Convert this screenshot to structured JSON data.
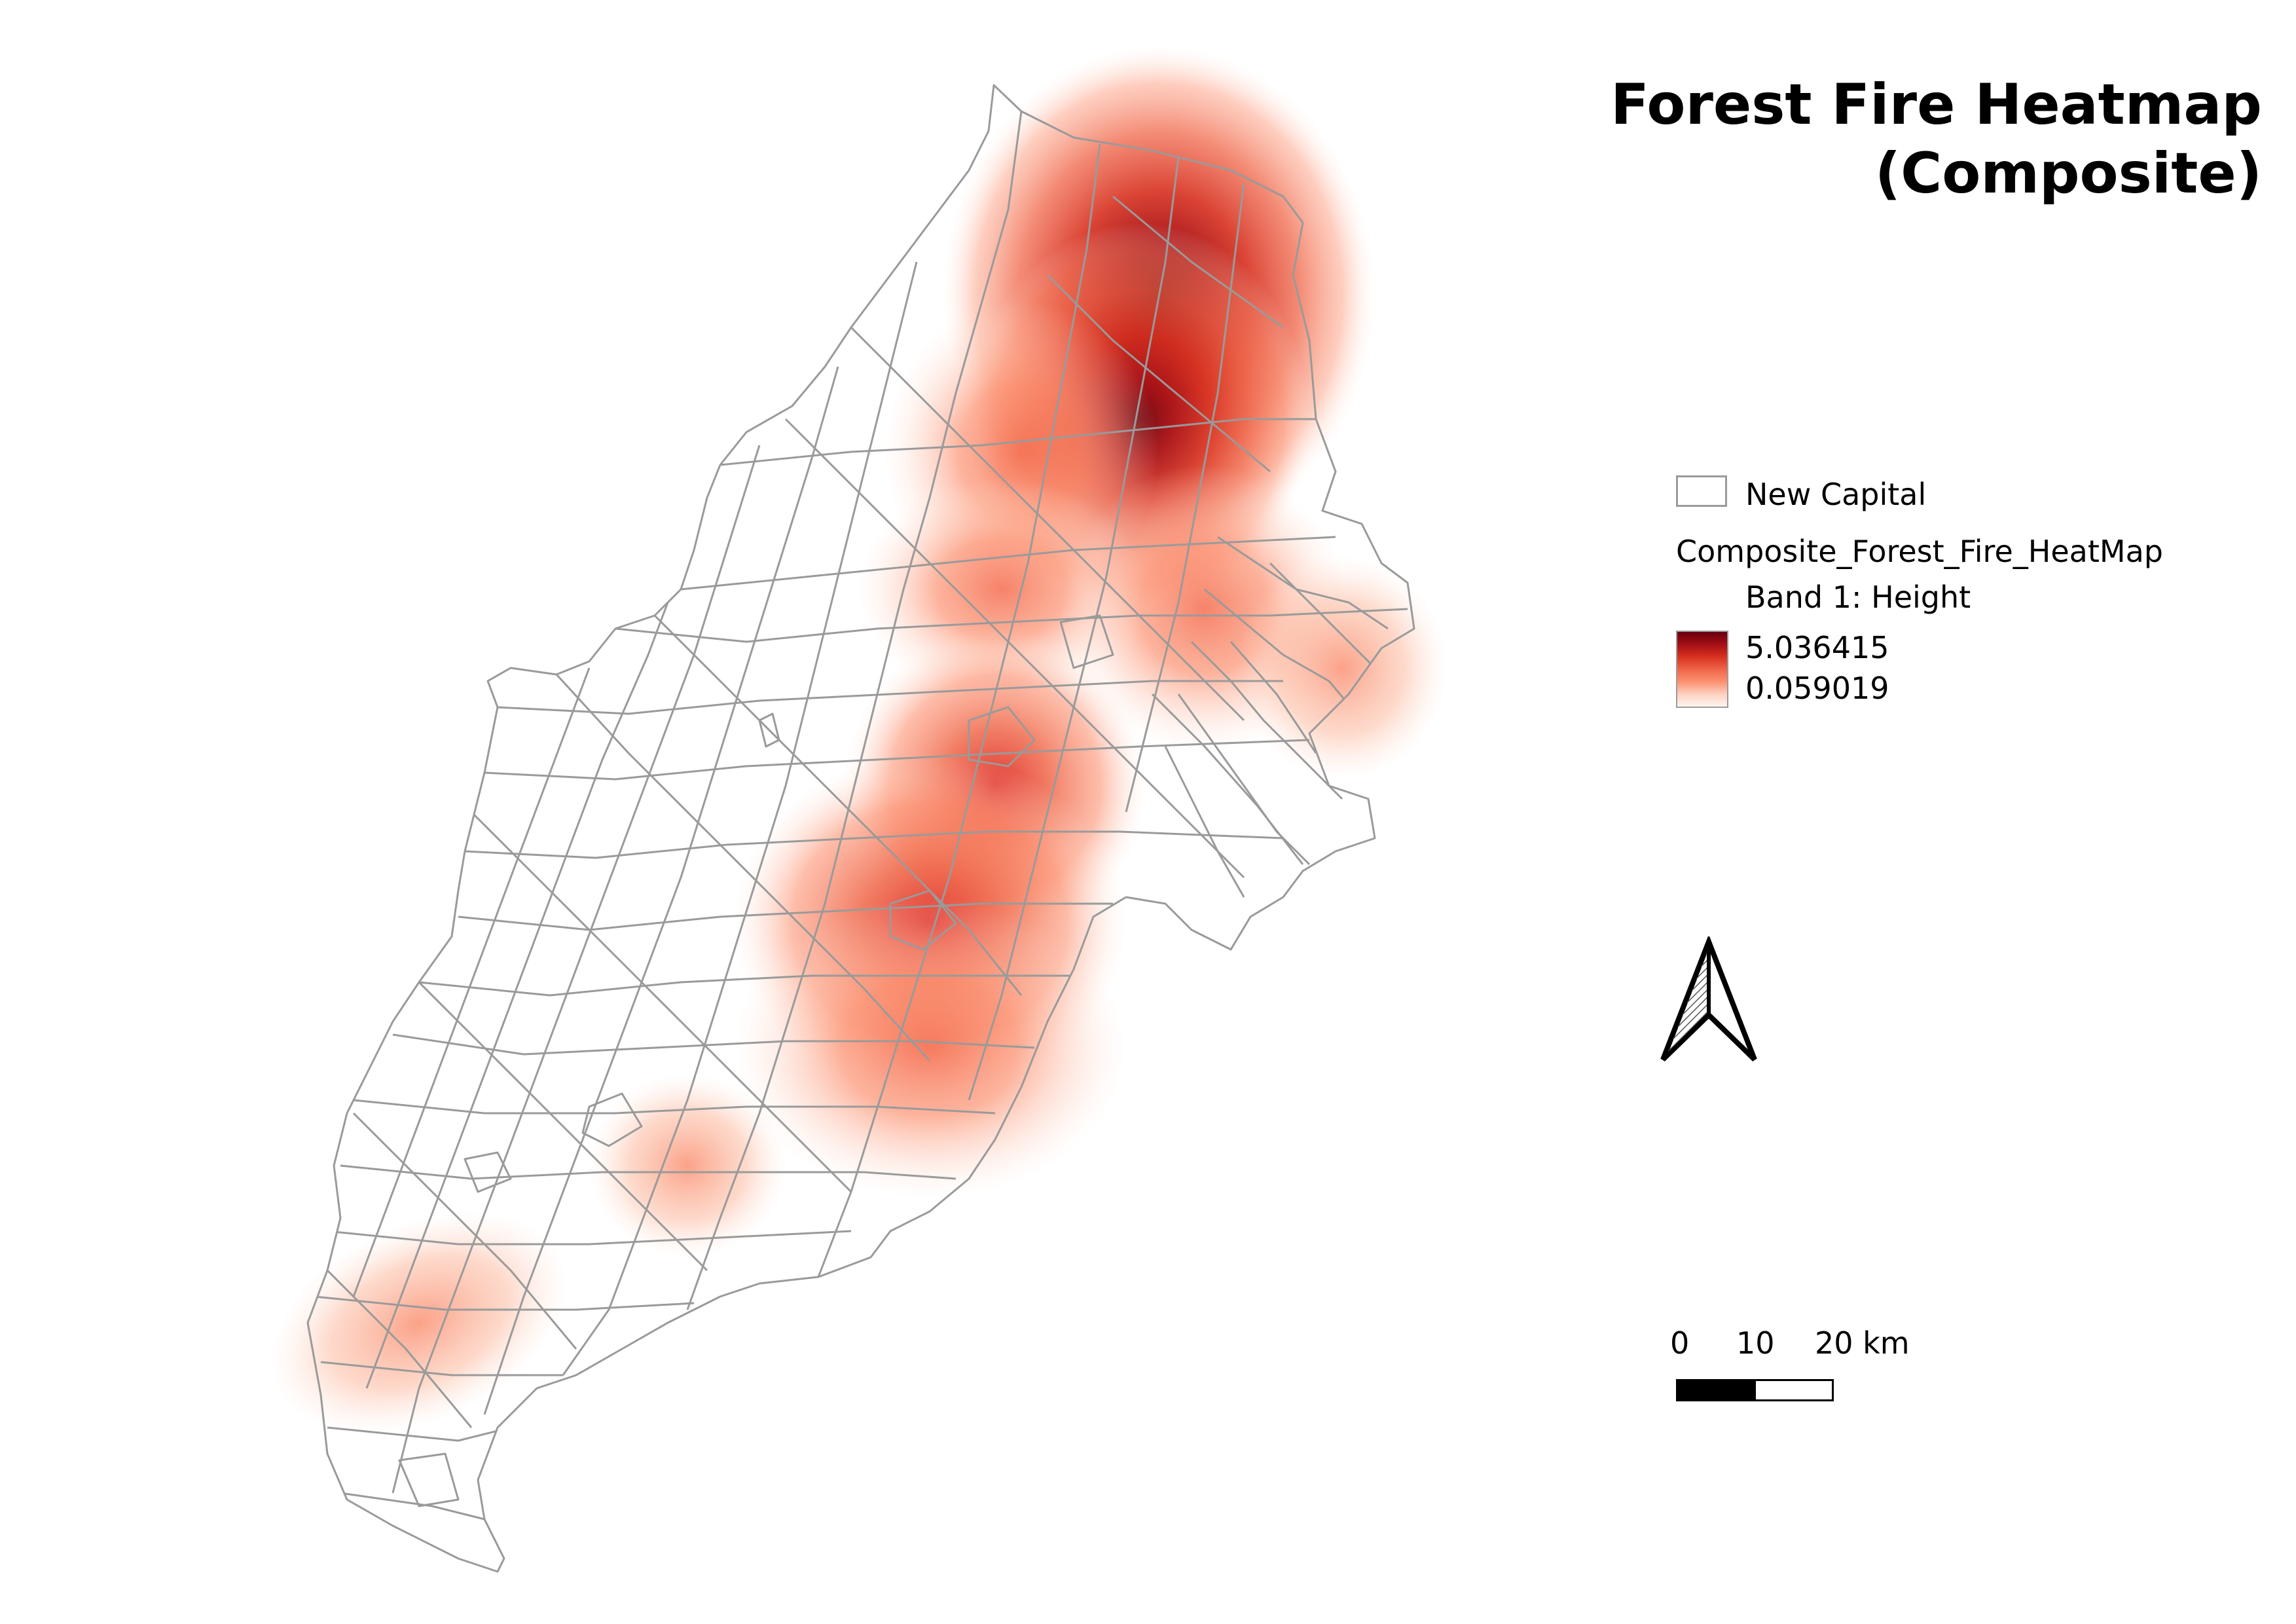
{
  "title": {
    "line1": "Forest Fire Heatmap",
    "line2": "(Composite)"
  },
  "legend": {
    "polygon_layer": "New Capital",
    "raster_layer": "Composite_Forest_Fire_HeatMap",
    "band": "Band 1: Height",
    "max_value": "5.036415",
    "min_value": "0.059019",
    "ramp_colors": [
      "#67000d",
      "#a50f15",
      "#d7301f",
      "#ef6548",
      "#fc9272",
      "#fdd0bf",
      "#fff5f0"
    ]
  },
  "north_arrow": {
    "icon": "north-arrow-icon"
  },
  "scale_bar": {
    "labels": [
      "0",
      "10",
      "20 km"
    ],
    "segment_colors": [
      "#000000",
      "#ffffff"
    ]
  },
  "colors": {
    "boundary_stroke": "#9a9a9a",
    "heat_peak": "#67000d",
    "heat_low": "#fff5f0"
  }
}
